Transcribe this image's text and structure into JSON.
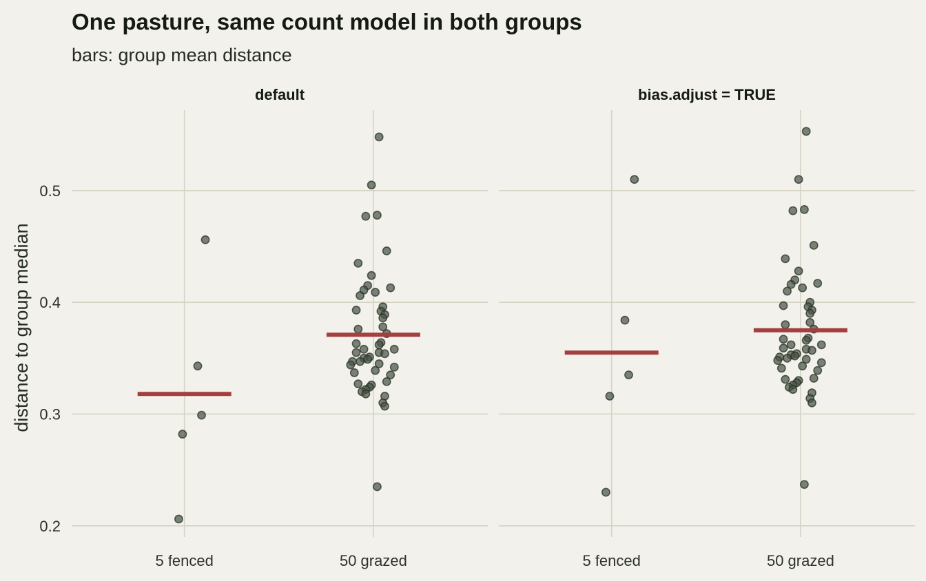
{
  "chart_data": {
    "type": "scatter",
    "title": "One pasture, same count model in both groups",
    "subtitle": "bars: group mean distance",
    "ylabel": "distance to group median",
    "ylim": [
      0.19,
      0.572
    ],
    "yticks": [
      0.2,
      0.3,
      0.4,
      0.5
    ],
    "yticklabels": [
      "0.2",
      "0.3",
      "0.4",
      "0.5"
    ],
    "categories": [
      "5 fenced",
      "50 grazed"
    ],
    "grid": true,
    "colors": {
      "background": "#f2f1eb",
      "grid": "#d4d4c4",
      "points": "#4a5447",
      "mean_bar": "#a33f3f"
    },
    "panels": [
      {
        "name": "default",
        "groups": [
          {
            "category": "5 fenced",
            "mean": 0.318,
            "points": [
              {
                "x": -0.03,
                "y": 0.206
              },
              {
                "x": -0.01,
                "y": 0.282
              },
              {
                "x": 0.09,
                "y": 0.299
              },
              {
                "x": 0.07,
                "y": 0.343
              },
              {
                "x": 0.11,
                "y": 0.456
              }
            ]
          },
          {
            "category": "50 grazed",
            "mean": 0.371,
            "points": [
              {
                "x": 0.03,
                "y": 0.548
              },
              {
                "x": -0.01,
                "y": 0.505
              },
              {
                "x": -0.04,
                "y": 0.477
              },
              {
                "x": 0.02,
                "y": 0.478
              },
              {
                "x": 0.07,
                "y": 0.446
              },
              {
                "x": -0.08,
                "y": 0.435
              },
              {
                "x": -0.01,
                "y": 0.424
              },
              {
                "x": -0.03,
                "y": 0.415
              },
              {
                "x": 0.09,
                "y": 0.413
              },
              {
                "x": -0.05,
                "y": 0.411
              },
              {
                "x": 0.01,
                "y": 0.409
              },
              {
                "x": -0.07,
                "y": 0.406
              },
              {
                "x": 0.05,
                "y": 0.396
              },
              {
                "x": -0.09,
                "y": 0.393
              },
              {
                "x": 0.04,
                "y": 0.392
              },
              {
                "x": 0.06,
                "y": 0.389
              },
              {
                "x": 0.05,
                "y": 0.386
              },
              {
                "x": 0.05,
                "y": 0.378
              },
              {
                "x": -0.08,
                "y": 0.376
              },
              {
                "x": 0.07,
                "y": 0.372
              },
              {
                "x": -0.09,
                "y": 0.363
              },
              {
                "x": 0.04,
                "y": 0.364
              },
              {
                "x": 0.03,
                "y": 0.362
              },
              {
                "x": 0.11,
                "y": 0.358
              },
              {
                "x": -0.05,
                "y": 0.358
              },
              {
                "x": -0.09,
                "y": 0.355
              },
              {
                "x": 0.03,
                "y": 0.355
              },
              {
                "x": 0.06,
                "y": 0.354
              },
              {
                "x": -0.02,
                "y": 0.351
              },
              {
                "x": -0.05,
                "y": 0.35
              },
              {
                "x": -0.03,
                "y": 0.349
              },
              {
                "x": -0.11,
                "y": 0.347
              },
              {
                "x": -0.07,
                "y": 0.347
              },
              {
                "x": 0.03,
                "y": 0.345
              },
              {
                "x": -0.12,
                "y": 0.344
              },
              {
                "x": 0.11,
                "y": 0.342
              },
              {
                "x": 0.01,
                "y": 0.339
              },
              {
                "x": -0.1,
                "y": 0.337
              },
              {
                "x": 0.09,
                "y": 0.335
              },
              {
                "x": 0.07,
                "y": 0.329
              },
              {
                "x": -0.08,
                "y": 0.327
              },
              {
                "x": -0.01,
                "y": 0.326
              },
              {
                "x": -0.02,
                "y": 0.324
              },
              {
                "x": -0.04,
                "y": 0.322
              },
              {
                "x": -0.06,
                "y": 0.32
              },
              {
                "x": -0.04,
                "y": 0.318
              },
              {
                "x": 0.06,
                "y": 0.316
              },
              {
                "x": 0.05,
                "y": 0.31
              },
              {
                "x": 0.06,
                "y": 0.307
              },
              {
                "x": 0.02,
                "y": 0.235
              }
            ]
          }
        ]
      },
      {
        "name": "bias.adjust = TRUE",
        "groups": [
          {
            "category": "5 fenced",
            "mean": 0.355,
            "points": [
              {
                "x": -0.03,
                "y": 0.23
              },
              {
                "x": -0.01,
                "y": 0.316
              },
              {
                "x": 0.09,
                "y": 0.335
              },
              {
                "x": 0.07,
                "y": 0.384
              },
              {
                "x": 0.12,
                "y": 0.51
              }
            ]
          },
          {
            "category": "50 grazed",
            "mean": 0.375,
            "points": [
              {
                "x": 0.03,
                "y": 0.553
              },
              {
                "x": -0.01,
                "y": 0.51
              },
              {
                "x": -0.04,
                "y": 0.482
              },
              {
                "x": 0.02,
                "y": 0.483
              },
              {
                "x": 0.07,
                "y": 0.451
              },
              {
                "x": -0.08,
                "y": 0.439
              },
              {
                "x": -0.01,
                "y": 0.428
              },
              {
                "x": -0.03,
                "y": 0.42
              },
              {
                "x": 0.09,
                "y": 0.417
              },
              {
                "x": -0.05,
                "y": 0.416
              },
              {
                "x": 0.01,
                "y": 0.413
              },
              {
                "x": -0.07,
                "y": 0.41
              },
              {
                "x": 0.05,
                "y": 0.4
              },
              {
                "x": -0.09,
                "y": 0.397
              },
              {
                "x": 0.04,
                "y": 0.396
              },
              {
                "x": 0.06,
                "y": 0.393
              },
              {
                "x": 0.05,
                "y": 0.39
              },
              {
                "x": 0.05,
                "y": 0.382
              },
              {
                "x": -0.08,
                "y": 0.38
              },
              {
                "x": 0.07,
                "y": 0.376
              },
              {
                "x": -0.09,
                "y": 0.367
              },
              {
                "x": 0.04,
                "y": 0.368
              },
              {
                "x": 0.03,
                "y": 0.366
              },
              {
                "x": 0.11,
                "y": 0.362
              },
              {
                "x": -0.05,
                "y": 0.362
              },
              {
                "x": -0.09,
                "y": 0.359
              },
              {
                "x": 0.03,
                "y": 0.358
              },
              {
                "x": 0.06,
                "y": 0.357
              },
              {
                "x": -0.02,
                "y": 0.354
              },
              {
                "x": -0.05,
                "y": 0.353
              },
              {
                "x": -0.03,
                "y": 0.352
              },
              {
                "x": -0.11,
                "y": 0.351
              },
              {
                "x": -0.07,
                "y": 0.35
              },
              {
                "x": 0.03,
                "y": 0.349
              },
              {
                "x": -0.12,
                "y": 0.348
              },
              {
                "x": 0.11,
                "y": 0.346
              },
              {
                "x": 0.01,
                "y": 0.343
              },
              {
                "x": -0.1,
                "y": 0.341
              },
              {
                "x": 0.09,
                "y": 0.339
              },
              {
                "x": 0.07,
                "y": 0.332
              },
              {
                "x": -0.08,
                "y": 0.331
              },
              {
                "x": -0.01,
                "y": 0.33
              },
              {
                "x": -0.02,
                "y": 0.328
              },
              {
                "x": -0.04,
                "y": 0.326
              },
              {
                "x": -0.06,
                "y": 0.324
              },
              {
                "x": -0.04,
                "y": 0.322
              },
              {
                "x": 0.06,
                "y": 0.319
              },
              {
                "x": 0.05,
                "y": 0.314
              },
              {
                "x": 0.06,
                "y": 0.31
              },
              {
                "x": 0.02,
                "y": 0.237
              }
            ]
          }
        ]
      }
    ]
  }
}
